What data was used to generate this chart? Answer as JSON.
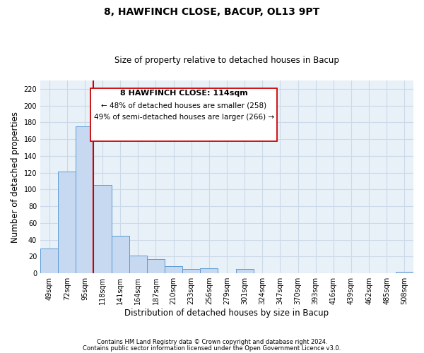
{
  "title": "8, HAWFINCH CLOSE, BACUP, OL13 9PT",
  "subtitle": "Size of property relative to detached houses in Bacup",
  "xlabel": "Distribution of detached houses by size in Bacup",
  "ylabel": "Number of detached properties",
  "bin_labels": [
    "49sqm",
    "72sqm",
    "95sqm",
    "118sqm",
    "141sqm",
    "164sqm",
    "187sqm",
    "210sqm",
    "233sqm",
    "256sqm",
    "279sqm",
    "301sqm",
    "324sqm",
    "347sqm",
    "370sqm",
    "393sqm",
    "416sqm",
    "439sqm",
    "462sqm",
    "485sqm",
    "508sqm"
  ],
  "bar_heights": [
    30,
    121,
    175,
    105,
    45,
    21,
    17,
    9,
    5,
    6,
    0,
    5,
    0,
    0,
    0,
    0,
    0,
    0,
    0,
    0,
    2
  ],
  "bar_color": "#c6d9f0",
  "bar_edge_color": "#5b9bd5",
  "vline_x": 3.0,
  "vline_color": "#cc0000",
  "annotation_title": "8 HAWFINCH CLOSE: 114sqm",
  "annotation_line1": "← 48% of detached houses are smaller (258)",
  "annotation_line2": "49% of semi-detached houses are larger (266) →",
  "annotation_box_color": "#ffffff",
  "annotation_box_edge": "#cc0000",
  "ylim": [
    0,
    230
  ],
  "yticks": [
    0,
    20,
    40,
    60,
    80,
    100,
    120,
    140,
    160,
    180,
    200,
    220
  ],
  "grid_color": "#ccd9e8",
  "bg_color": "#e8f0f8",
  "footnote1": "Contains HM Land Registry data © Crown copyright and database right 2024.",
  "footnote2": "Contains public sector information licensed under the Open Government Licence v3.0."
}
